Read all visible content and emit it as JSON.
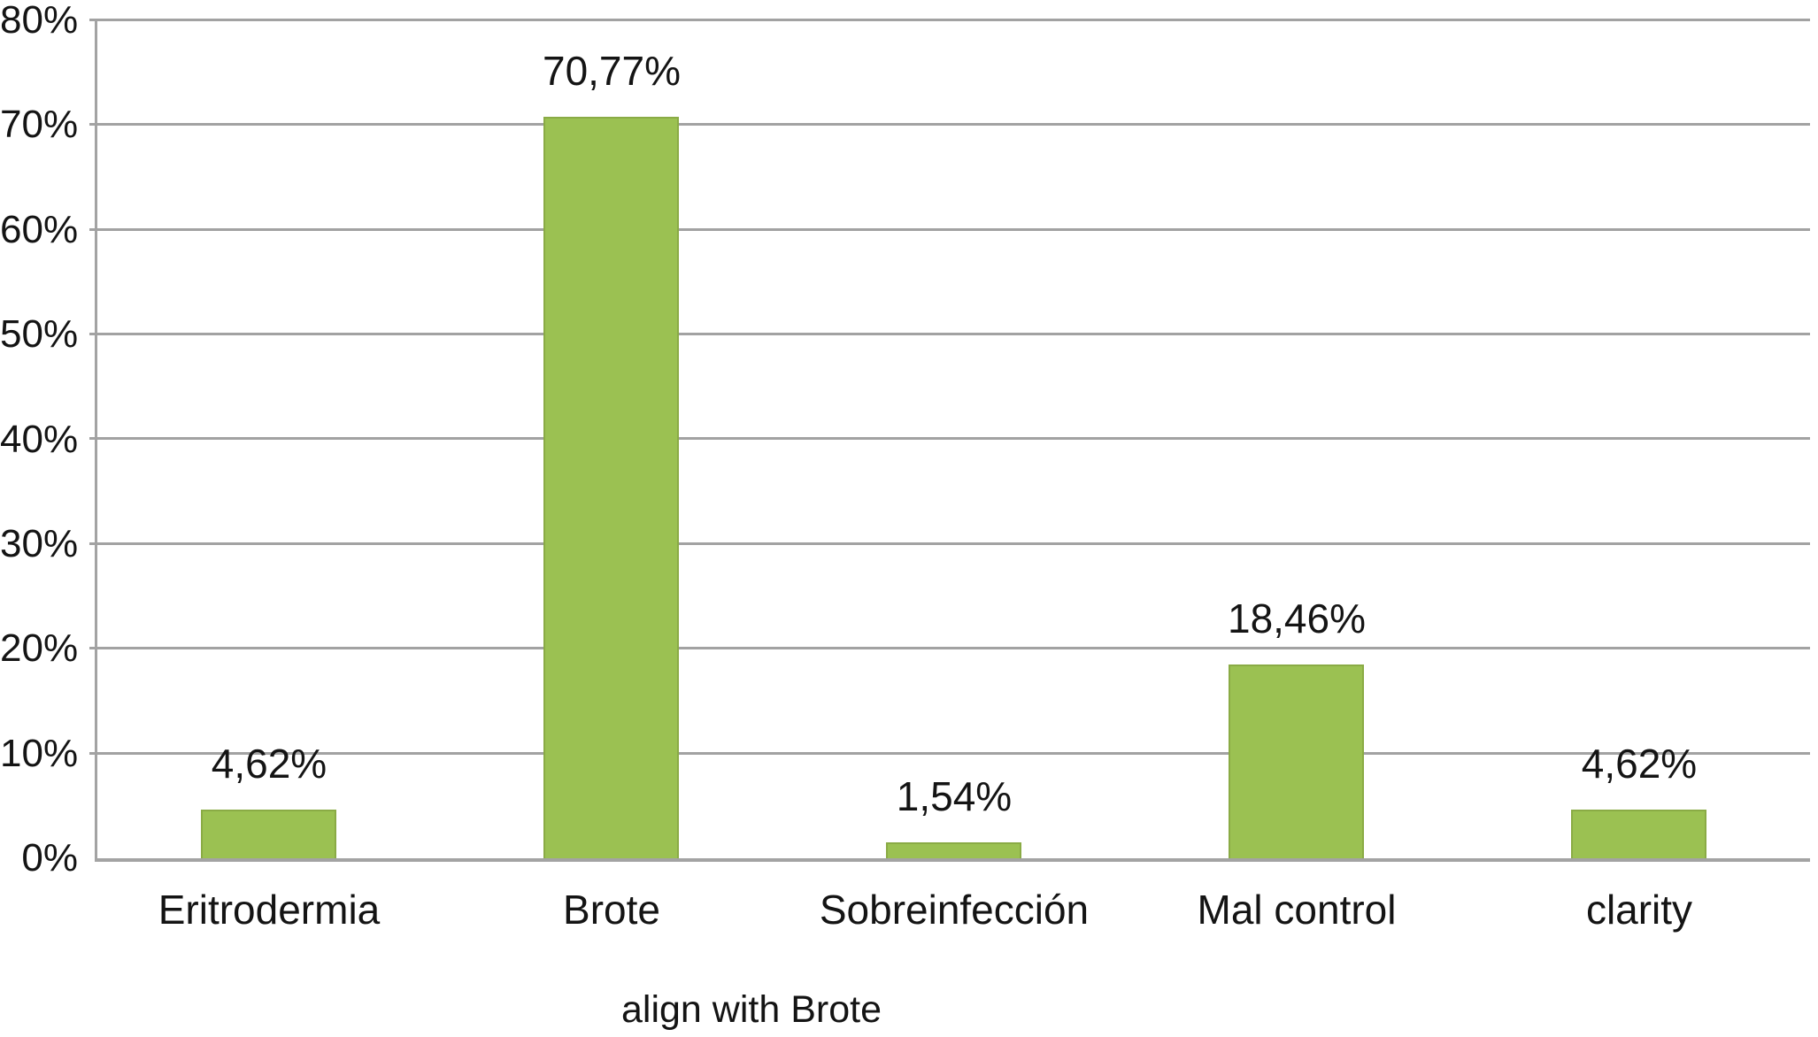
{
  "chart_data": {
    "type": "bar",
    "title": "",
    "xlabel": "align with Brote",
    "ylabel": "",
    "categories": [
      "Eritrodermia",
      "Brote",
      "Sobreinfección",
      "Mal control",
      "clarity"
    ],
    "values": [
      4.62,
      70.77,
      1.54,
      18.46,
      4.62
    ],
    "value_labels": [
      "4,62%",
      "70,77%",
      "1,54%",
      "18,46%",
      "4,62%"
    ],
    "ylim": [
      0,
      80
    ],
    "yticks": [
      0,
      10,
      20,
      30,
      40,
      50,
      60,
      70,
      80
    ],
    "ytick_labels": [
      "0%",
      "10%",
      "20%",
      "30%",
      "40%",
      "50%",
      "60%",
      "70%",
      "80%"
    ],
    "grid": "horizontal",
    "legend": "none",
    "colors": {
      "bar_fill": "#9BC152",
      "bar_border": "#8AAB45",
      "gridline": "#a2a2a2",
      "axis": "#a3a3a3",
      "text": "#141414",
      "background": "#ffffff"
    }
  }
}
